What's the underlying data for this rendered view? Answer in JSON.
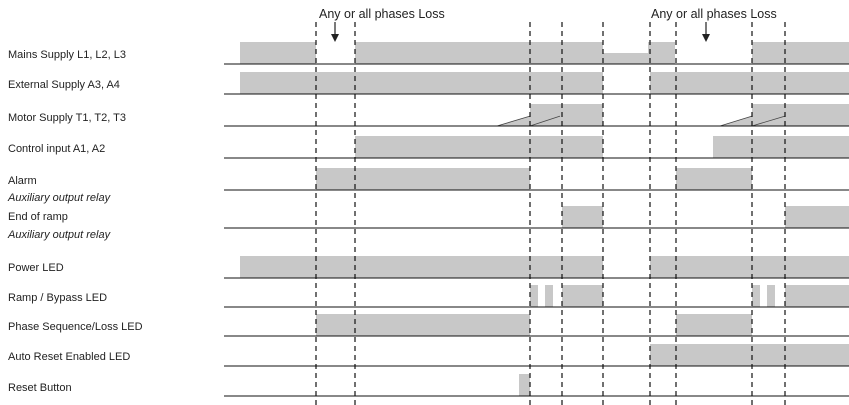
{
  "annotations": [
    "Any or all phases Loss",
    "Any or all phases Loss"
  ],
  "rows": [
    {
      "label": "Mains Supply L1, L2, L3",
      "segments": [
        [
          240,
          316
        ],
        [
          355,
          603
        ],
        [
          603,
          648,
          "half"
        ],
        [
          648,
          675
        ],
        [
          752,
          849
        ]
      ]
    },
    {
      "label": "External Supply A3, A4",
      "segments": [
        [
          240,
          603
        ],
        [
          650,
          849
        ]
      ]
    },
    {
      "label": "Motor Supply T1, T2, T3",
      "segments": [],
      "ramps": [
        [
          497,
          530,
          560
        ],
        [
          530,
          560,
          603
        ],
        [
          720,
          752,
          785
        ],
        [
          752,
          785,
          849
        ]
      ]
    },
    {
      "label": "Control input A1, A2",
      "segments": [
        [
          355,
          603
        ],
        [
          713,
          849
        ]
      ]
    },
    {
      "label": "Alarm",
      "sublabel": "Auxiliary output relay",
      "segments": [
        [
          316,
          530
        ],
        [
          676,
          752
        ]
      ]
    },
    {
      "label": "End of ramp",
      "sublabel": "Auxiliary output relay",
      "segments": [
        [
          562,
          603
        ],
        [
          785,
          849
        ]
      ]
    },
    {
      "label": "Power LED",
      "segments": [
        [
          240,
          603
        ],
        [
          650,
          849
        ]
      ]
    },
    {
      "label": "Ramp / Bypass LED",
      "segments": [
        [
          530,
          538
        ],
        [
          545,
          553
        ],
        [
          562,
          603
        ],
        [
          752,
          760
        ],
        [
          767,
          775
        ],
        [
          785,
          849
        ]
      ]
    },
    {
      "label": "Phase Sequence/Loss LED",
      "segments": [
        [
          316,
          530
        ],
        [
          676,
          752
        ]
      ]
    },
    {
      "label": "Auto Reset Enabled LED",
      "segments": [
        [
          650,
          849
        ]
      ]
    },
    {
      "label": "Reset Button",
      "segments": [
        [
          519,
          530
        ]
      ]
    }
  ]
}
